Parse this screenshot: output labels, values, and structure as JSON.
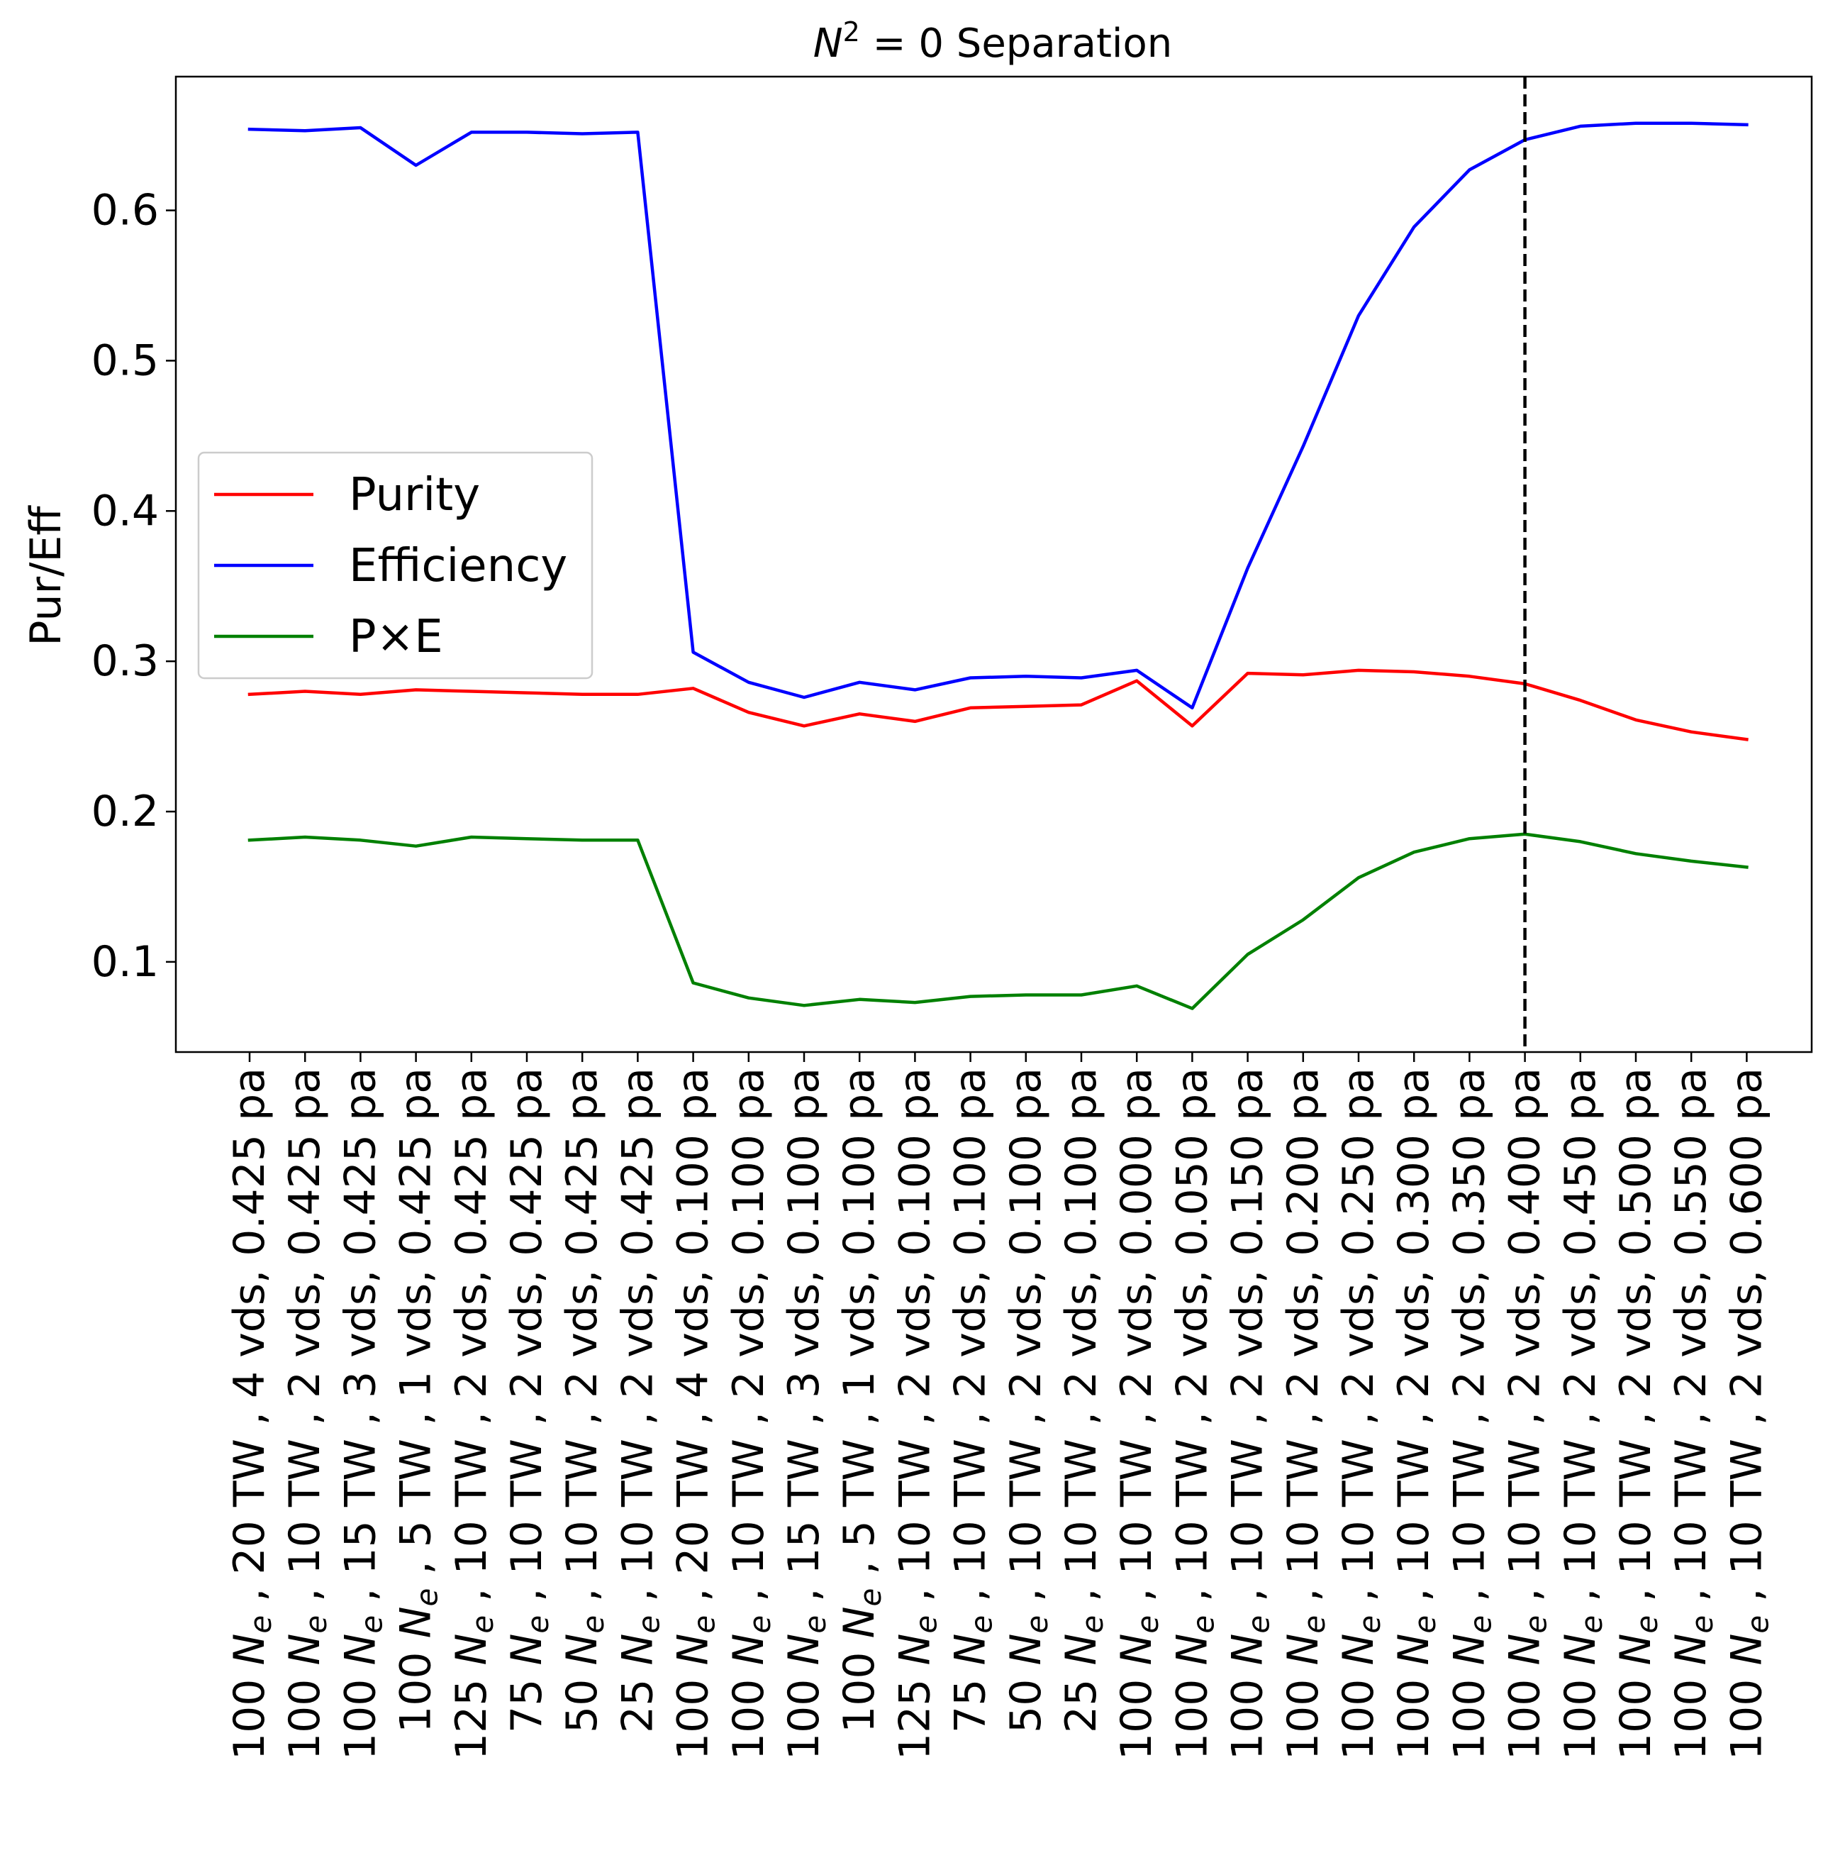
{
  "chart_data": {
    "type": "line",
    "title": {
      "symbol": "N",
      "exponent": "2",
      "rest": " = 0 Separation"
    },
    "xlabel": "",
    "ylabel": "Pur/Eff",
    "yticks": [
      "0.1",
      "0.2",
      "0.3",
      "0.4",
      "0.5",
      "0.6"
    ],
    "ytick_values": [
      0.1,
      0.2,
      0.3,
      0.4,
      0.5,
      0.6
    ],
    "ylim": [
      0.04,
      0.689
    ],
    "grid": false,
    "legend_position": "center-left",
    "vline_category_index": 23,
    "vline_style": "dashed",
    "categories": [
      {
        "ne": "100",
        "tw": "20",
        "vds": "4",
        "pa": "0.425"
      },
      {
        "ne": "100",
        "tw": "10",
        "vds": "2",
        "pa": "0.425"
      },
      {
        "ne": "100",
        "tw": "15",
        "vds": "3",
        "pa": "0.425"
      },
      {
        "ne": "100",
        "tw": "5",
        "vds": "1",
        "pa": "0.425"
      },
      {
        "ne": "125",
        "tw": "10",
        "vds": "2",
        "pa": "0.425"
      },
      {
        "ne": "75",
        "tw": "10",
        "vds": "2",
        "pa": "0.425"
      },
      {
        "ne": "50",
        "tw": "10",
        "vds": "2",
        "pa": "0.425"
      },
      {
        "ne": "25",
        "tw": "10",
        "vds": "2",
        "pa": "0.425"
      },
      {
        "ne": "100",
        "tw": "20",
        "vds": "4",
        "pa": "0.100"
      },
      {
        "ne": "100",
        "tw": "10",
        "vds": "2",
        "pa": "0.100"
      },
      {
        "ne": "100",
        "tw": "15",
        "vds": "3",
        "pa": "0.100"
      },
      {
        "ne": "100",
        "tw": "5",
        "vds": "1",
        "pa": "0.100"
      },
      {
        "ne": "125",
        "tw": "10",
        "vds": "2",
        "pa": "0.100"
      },
      {
        "ne": "75",
        "tw": "10",
        "vds": "2",
        "pa": "0.100"
      },
      {
        "ne": "50",
        "tw": "10",
        "vds": "2",
        "pa": "0.100"
      },
      {
        "ne": "25",
        "tw": "10",
        "vds": "2",
        "pa": "0.100"
      },
      {
        "ne": "100",
        "tw": "10",
        "vds": "2",
        "pa": "0.000"
      },
      {
        "ne": "100",
        "tw": "10",
        "vds": "2",
        "pa": "0.050"
      },
      {
        "ne": "100",
        "tw": "10",
        "vds": "2",
        "pa": "0.150"
      },
      {
        "ne": "100",
        "tw": "10",
        "vds": "2",
        "pa": "0.200"
      },
      {
        "ne": "100",
        "tw": "10",
        "vds": "2",
        "pa": "0.250"
      },
      {
        "ne": "100",
        "tw": "10",
        "vds": "2",
        "pa": "0.300"
      },
      {
        "ne": "100",
        "tw": "10",
        "vds": "2",
        "pa": "0.350"
      },
      {
        "ne": "100",
        "tw": "10",
        "vds": "2",
        "pa": "0.400"
      },
      {
        "ne": "100",
        "tw": "10",
        "vds": "2",
        "pa": "0.450"
      },
      {
        "ne": "100",
        "tw": "10",
        "vds": "2",
        "pa": "0.500"
      },
      {
        "ne": "100",
        "tw": "10",
        "vds": "2",
        "pa": "0.550"
      },
      {
        "ne": "100",
        "tw": "10",
        "vds": "2",
        "pa": "0.600"
      }
    ],
    "series": [
      {
        "name": "Purity",
        "color": "#ff0000",
        "values": [
          0.278,
          0.28,
          0.278,
          0.281,
          0.28,
          0.279,
          0.278,
          0.278,
          0.282,
          0.266,
          0.257,
          0.265,
          0.26,
          0.269,
          0.27,
          0.271,
          0.287,
          0.257,
          0.292,
          0.291,
          0.294,
          0.293,
          0.29,
          0.285,
          0.274,
          0.261,
          0.253,
          0.248
        ]
      },
      {
        "name": "Efficiency",
        "color": "#0000ff",
        "values": [
          0.654,
          0.653,
          0.655,
          0.63,
          0.652,
          0.652,
          0.651,
          0.652,
          0.306,
          0.286,
          0.276,
          0.286,
          0.281,
          0.289,
          0.29,
          0.289,
          0.294,
          0.269,
          0.362,
          0.443,
          0.53,
          0.589,
          0.627,
          0.647,
          0.656,
          0.658,
          0.658,
          0.657
        ]
      },
      {
        "name": "P×E",
        "color": "#008000",
        "values": [
          0.181,
          0.183,
          0.181,
          0.177,
          0.183,
          0.182,
          0.181,
          0.181,
          0.086,
          0.076,
          0.071,
          0.075,
          0.073,
          0.077,
          0.078,
          0.078,
          0.084,
          0.069,
          0.105,
          0.128,
          0.156,
          0.173,
          0.182,
          0.185,
          0.18,
          0.172,
          0.167,
          0.163
        ]
      }
    ]
  }
}
